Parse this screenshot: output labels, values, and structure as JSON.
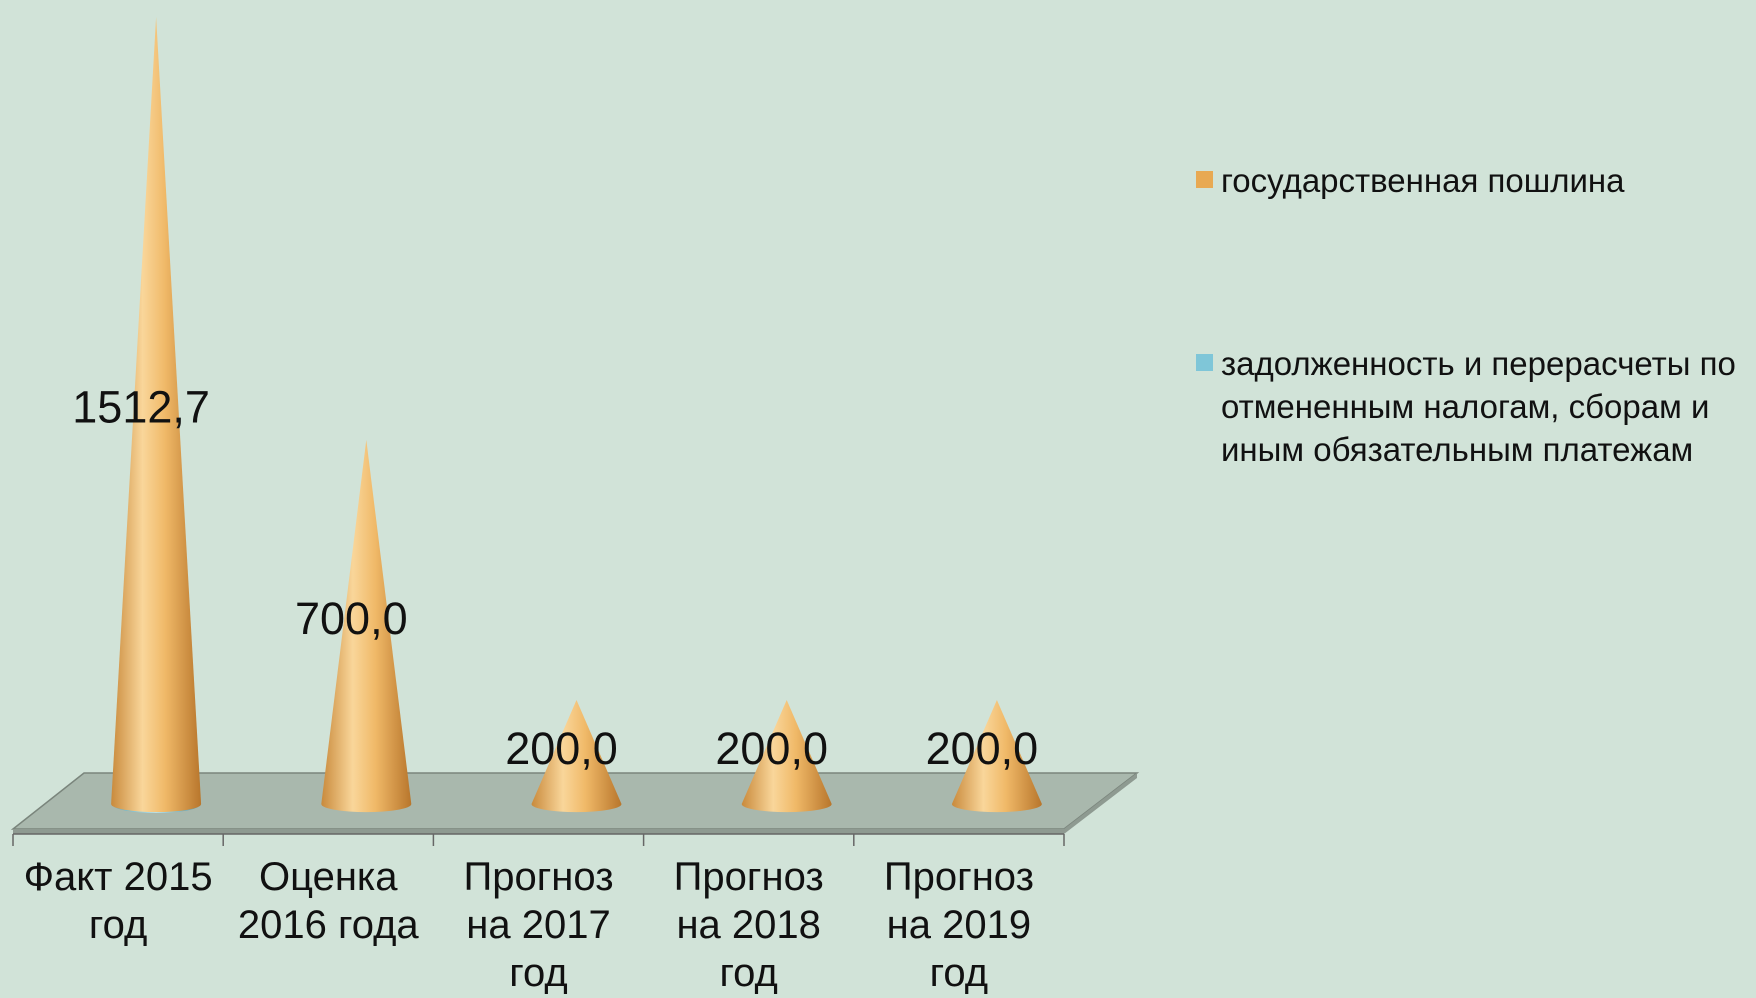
{
  "chart_data": {
    "type": "cone",
    "categories": [
      "Факт 2015 год",
      "Оценка 2016 года",
      "Прогноз на 2017 год",
      "Прогноз на 2018 год",
      "Прогноз на 2019 год"
    ],
    "series": [
      {
        "name": "государственная пошлина",
        "color": "#e8a952",
        "values": [
          1512.7,
          700.0,
          200.0,
          200.0,
          200.0
        ],
        "value_labels": [
          "1512,7",
          "700,0",
          "200,0",
          "200,0",
          "200,0"
        ]
      },
      {
        "name": "задолженность и перерасчеты по отмененным налогам, сборам и иным обязательным платежам",
        "color": "#7fc6d8",
        "values": [
          1,
          0,
          0,
          0,
          0
        ]
      }
    ]
  }
}
